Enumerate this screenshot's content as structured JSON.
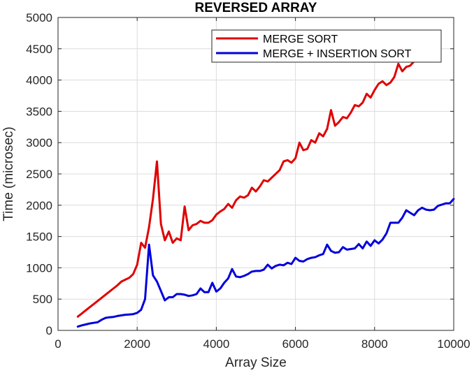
{
  "chart_data": {
    "type": "line",
    "title": "REVERSED ARRAY",
    "xlabel": "Array Size",
    "ylabel": "Time (microsec)",
    "xlim": [
      0,
      10000
    ],
    "ylim": [
      0,
      5000
    ],
    "xticks": [
      0,
      2000,
      4000,
      6000,
      8000,
      10000
    ],
    "yticks": [
      0,
      500,
      1000,
      1500,
      2000,
      2500,
      3000,
      3500,
      4000,
      4500,
      5000
    ],
    "grid": true,
    "legend_position": "top-right",
    "series": [
      {
        "name": "MERGE SORT",
        "color": "#e00000",
        "points": [
          [
            500,
            220
          ],
          [
            600,
            270
          ],
          [
            700,
            320
          ],
          [
            800,
            370
          ],
          [
            900,
            420
          ],
          [
            1000,
            470
          ],
          [
            1100,
            520
          ],
          [
            1200,
            570
          ],
          [
            1300,
            620
          ],
          [
            1400,
            670
          ],
          [
            1500,
            720
          ],
          [
            1600,
            780
          ],
          [
            1700,
            810
          ],
          [
            1800,
            840
          ],
          [
            1900,
            900
          ],
          [
            2000,
            1050
          ],
          [
            2100,
            1400
          ],
          [
            2200,
            1320
          ],
          [
            2300,
            1650
          ],
          [
            2400,
            2100
          ],
          [
            2500,
            2700
          ],
          [
            2600,
            1700
          ],
          [
            2700,
            1440
          ],
          [
            2800,
            1580
          ],
          [
            2900,
            1400
          ],
          [
            3000,
            1470
          ],
          [
            3100,
            1440
          ],
          [
            3200,
            1980
          ],
          [
            3300,
            1600
          ],
          [
            3400,
            1680
          ],
          [
            3500,
            1700
          ],
          [
            3600,
            1750
          ],
          [
            3700,
            1720
          ],
          [
            3800,
            1720
          ],
          [
            3900,
            1760
          ],
          [
            4000,
            1850
          ],
          [
            4100,
            1900
          ],
          [
            4200,
            1940
          ],
          [
            4300,
            2020
          ],
          [
            4400,
            1960
          ],
          [
            4500,
            2080
          ],
          [
            4600,
            2140
          ],
          [
            4700,
            2120
          ],
          [
            4800,
            2160
          ],
          [
            4900,
            2280
          ],
          [
            5000,
            2220
          ],
          [
            5100,
            2300
          ],
          [
            5200,
            2400
          ],
          [
            5300,
            2380
          ],
          [
            5400,
            2440
          ],
          [
            5500,
            2500
          ],
          [
            5600,
            2560
          ],
          [
            5700,
            2700
          ],
          [
            5800,
            2720
          ],
          [
            5900,
            2680
          ],
          [
            6000,
            2750
          ],
          [
            6100,
            3000
          ],
          [
            6200,
            2880
          ],
          [
            6300,
            2900
          ],
          [
            6400,
            3040
          ],
          [
            6500,
            3000
          ],
          [
            6600,
            3150
          ],
          [
            6700,
            3100
          ],
          [
            6800,
            3220
          ],
          [
            6900,
            3520
          ],
          [
            7000,
            3270
          ],
          [
            7100,
            3330
          ],
          [
            7200,
            3410
          ],
          [
            7300,
            3390
          ],
          [
            7400,
            3480
          ],
          [
            7500,
            3600
          ],
          [
            7600,
            3580
          ],
          [
            7700,
            3640
          ],
          [
            7800,
            3780
          ],
          [
            7900,
            3720
          ],
          [
            8000,
            3840
          ],
          [
            8100,
            3940
          ],
          [
            8200,
            3980
          ],
          [
            8300,
            3920
          ],
          [
            8400,
            3960
          ],
          [
            8500,
            4050
          ],
          [
            8600,
            4260
          ],
          [
            8700,
            4140
          ],
          [
            8800,
            4210
          ],
          [
            8900,
            4230
          ],
          [
            9000,
            4300
          ]
        ]
      },
      {
        "name": "MERGE + INSERTION SORT",
        "color": "#0000dd",
        "points": [
          [
            500,
            60
          ],
          [
            600,
            80
          ],
          [
            700,
            95
          ],
          [
            800,
            110
          ],
          [
            900,
            120
          ],
          [
            1000,
            130
          ],
          [
            1100,
            170
          ],
          [
            1200,
            200
          ],
          [
            1300,
            210
          ],
          [
            1400,
            215
          ],
          [
            1500,
            230
          ],
          [
            1600,
            240
          ],
          [
            1700,
            250
          ],
          [
            1800,
            255
          ],
          [
            1900,
            260
          ],
          [
            2000,
            280
          ],
          [
            2100,
            330
          ],
          [
            2200,
            500
          ],
          [
            2300,
            1370
          ],
          [
            2400,
            880
          ],
          [
            2500,
            780
          ],
          [
            2600,
            630
          ],
          [
            2700,
            480
          ],
          [
            2800,
            530
          ],
          [
            2900,
            530
          ],
          [
            3000,
            580
          ],
          [
            3100,
            580
          ],
          [
            3200,
            570
          ],
          [
            3300,
            550
          ],
          [
            3400,
            560
          ],
          [
            3500,
            580
          ],
          [
            3600,
            670
          ],
          [
            3700,
            610
          ],
          [
            3800,
            610
          ],
          [
            3900,
            760
          ],
          [
            4000,
            620
          ],
          [
            4100,
            670
          ],
          [
            4200,
            760
          ],
          [
            4300,
            830
          ],
          [
            4400,
            980
          ],
          [
            4500,
            860
          ],
          [
            4600,
            850
          ],
          [
            4700,
            870
          ],
          [
            4800,
            900
          ],
          [
            4900,
            940
          ],
          [
            5000,
            950
          ],
          [
            5100,
            950
          ],
          [
            5200,
            970
          ],
          [
            5300,
            1050
          ],
          [
            5400,
            990
          ],
          [
            5500,
            1030
          ],
          [
            5600,
            1050
          ],
          [
            5700,
            1040
          ],
          [
            5800,
            1080
          ],
          [
            5900,
            1060
          ],
          [
            6000,
            1160
          ],
          [
            6100,
            1110
          ],
          [
            6200,
            1100
          ],
          [
            6300,
            1140
          ],
          [
            6400,
            1160
          ],
          [
            6500,
            1170
          ],
          [
            6600,
            1200
          ],
          [
            6700,
            1220
          ],
          [
            6800,
            1370
          ],
          [
            6900,
            1270
          ],
          [
            7000,
            1240
          ],
          [
            7100,
            1250
          ],
          [
            7200,
            1330
          ],
          [
            7300,
            1290
          ],
          [
            7400,
            1300
          ],
          [
            7500,
            1310
          ],
          [
            7600,
            1380
          ],
          [
            7700,
            1310
          ],
          [
            7800,
            1420
          ],
          [
            7900,
            1350
          ],
          [
            8000,
            1440
          ],
          [
            8100,
            1390
          ],
          [
            8200,
            1450
          ],
          [
            8300,
            1550
          ],
          [
            8400,
            1720
          ],
          [
            8500,
            1720
          ],
          [
            8600,
            1720
          ],
          [
            8700,
            1800
          ],
          [
            8800,
            1920
          ],
          [
            8900,
            1880
          ],
          [
            9000,
            1840
          ],
          [
            9100,
            1920
          ],
          [
            9200,
            1960
          ],
          [
            9300,
            1930
          ],
          [
            9400,
            1920
          ],
          [
            9500,
            1930
          ],
          [
            9600,
            1990
          ],
          [
            9700,
            2010
          ],
          [
            9800,
            2030
          ],
          [
            9900,
            2030
          ],
          [
            10000,
            2100
          ]
        ]
      }
    ]
  }
}
